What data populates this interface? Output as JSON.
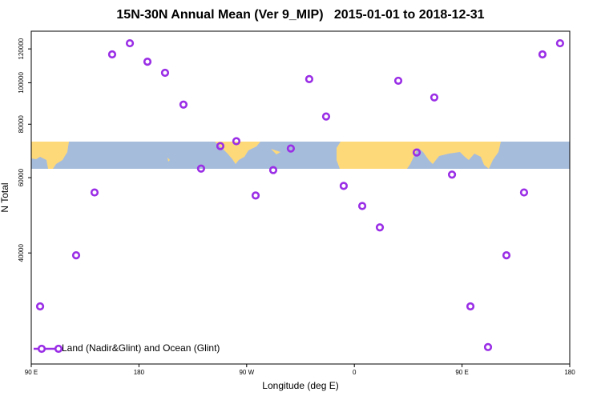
{
  "chart_data": {
    "type": "scatter",
    "title": "15N-30N Annual Mean (Ver 9_MIP)   2015-01-01 to 2018-12-31",
    "x_label": "Longitude (deg E)",
    "y_label": "N Total",
    "log_y": true,
    "legend": "bottom-left",
    "xlim": [
      90,
      540
    ],
    "ylim": [
      22000,
      132000
    ],
    "xticks": [
      {
        "value": 90,
        "label": "90 E"
      },
      180,
      {
        "value": 270,
        "label": "90 W"
      },
      {
        "value": 360,
        "label": "0"
      },
      {
        "value": 450,
        "label": "90 E"
      },
      {
        "value": 540,
        "label": "180"
      }
    ],
    "yticks": [
      40000,
      60000,
      80000,
      100000,
      120000
    ],
    "series": [
      {
        "name": "Land (Nadir&Glint) and Ocean (Glint)",
        "color": "#9a2ee6",
        "x": [
          97.4,
          127.5,
          142.9,
          157.6,
          172.4,
          187.1,
          201.8,
          217.2,
          231.9,
          248,
          261.4,
          277.5,
          292.2,
          306.9,
          322.3,
          336.4,
          351.1,
          366.6,
          381.3,
          396.7,
          412.1,
          426.8,
          441.6,
          457,
          471.7,
          487.1,
          501.8,
          517.2,
          531.9
        ],
        "values": [
          30000,
          39500,
          55400,
          116500,
          123700,
          112000,
          105500,
          88900,
          63000,
          71100,
          73000,
          54500,
          62500,
          70200,
          102000,
          83400,
          57400,
          51500,
          45900,
          101100,
          68700,
          92400,
          61000,
          30000,
          24100,
          39500,
          55400,
          116500,
          123700
        ]
      }
    ]
  }
}
